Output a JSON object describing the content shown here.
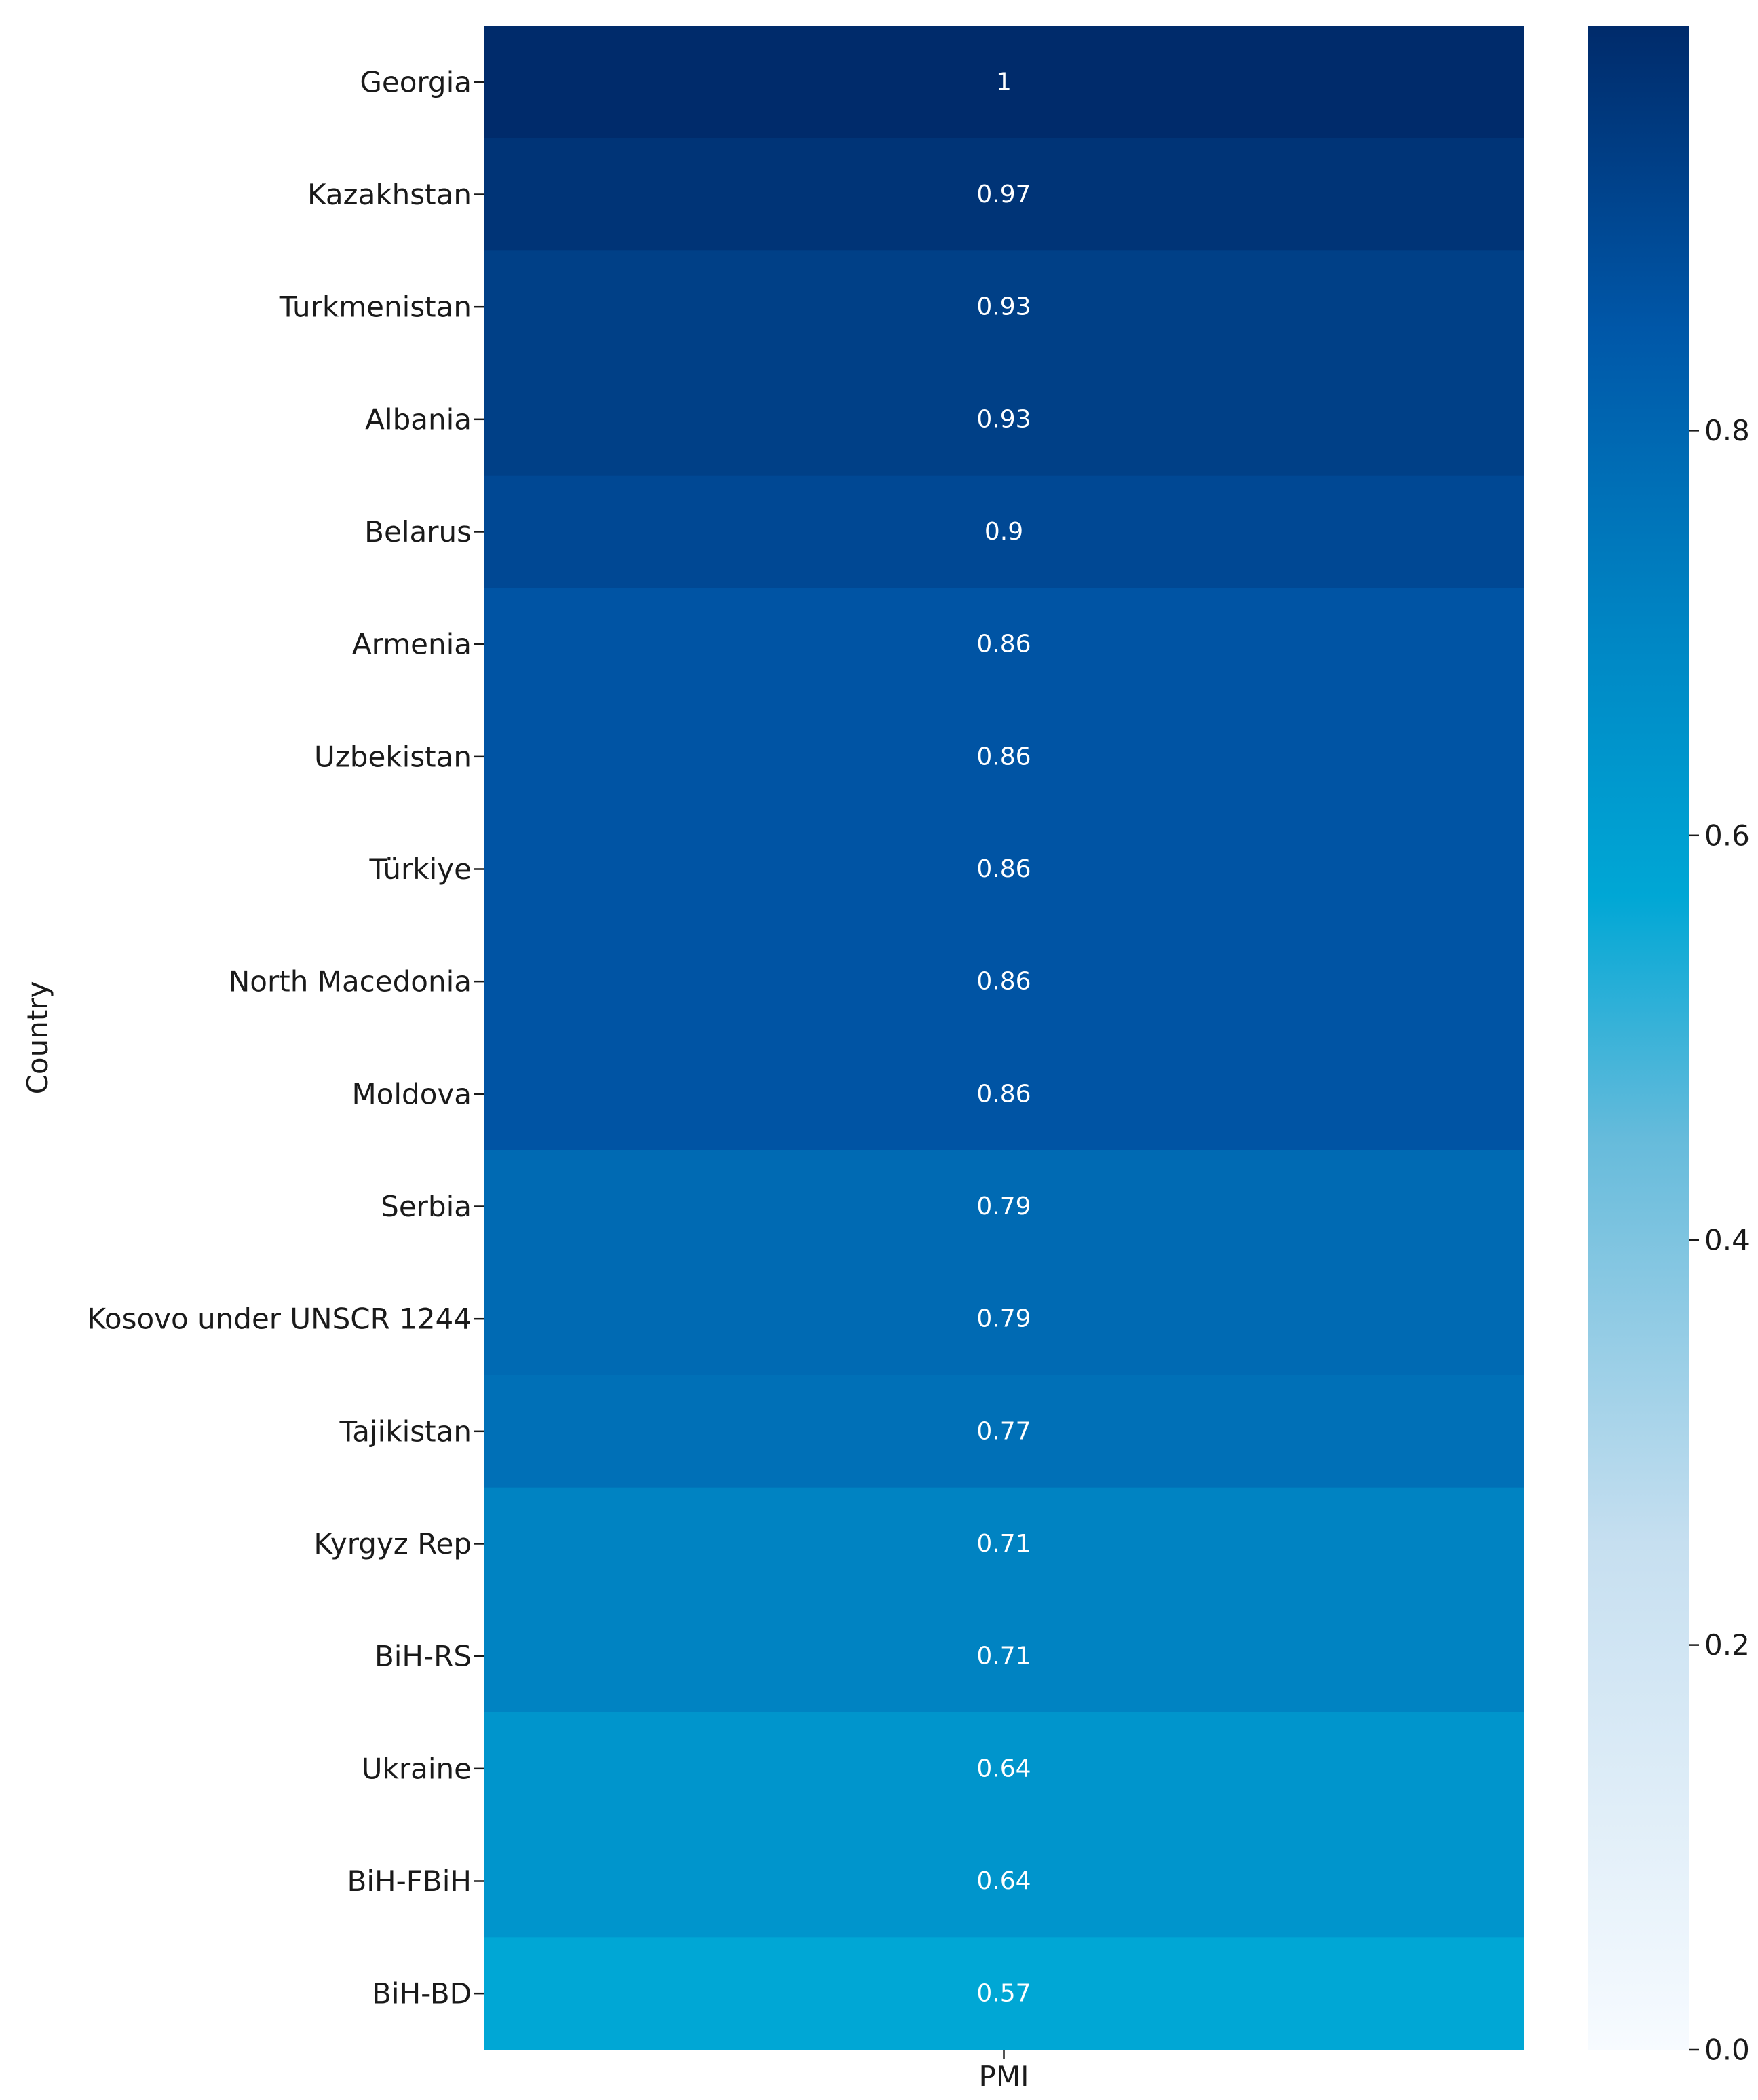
{
  "chart_data": {
    "type": "heatmap",
    "title": "",
    "xlabel": "",
    "ylabel": "Country",
    "columns": [
      "PMI"
    ],
    "rows": [
      "Georgia",
      "Kazakhstan",
      "Turkmenistan",
      "Albania",
      "Belarus",
      "Armenia",
      "Uzbekistan",
      "Türkiye",
      "North Macedonia",
      "Moldova",
      "Serbia",
      "Kosovo under UNSCR 1244",
      "Tajikistan",
      "Kyrgyz Rep",
      "BiH-RS",
      "Ukraine",
      "BiH-FBiH",
      "BiH-BD"
    ],
    "values": [
      1.0,
      0.97,
      0.93,
      0.93,
      0.9,
      0.86,
      0.86,
      0.86,
      0.86,
      0.86,
      0.79,
      0.79,
      0.77,
      0.71,
      0.71,
      0.64,
      0.64,
      0.57
    ],
    "value_labels": [
      "1",
      "0.97",
      "0.93",
      "0.93",
      "0.9",
      "0.86",
      "0.86",
      "0.86",
      "0.86",
      "0.86",
      "0.79",
      "0.79",
      "0.77",
      "0.71",
      "0.71",
      "0.64",
      "0.64",
      "0.57"
    ],
    "colormap": "Blues-to-navy (ocean)",
    "colorbar": {
      "range": [
        0.0,
        1.0
      ],
      "ticks": [
        0.0,
        0.2,
        0.4,
        0.6,
        0.8
      ],
      "tick_labels": [
        "0.0",
        "0.2",
        "0.4",
        "0.6",
        "0.8"
      ]
    },
    "grid": false
  }
}
